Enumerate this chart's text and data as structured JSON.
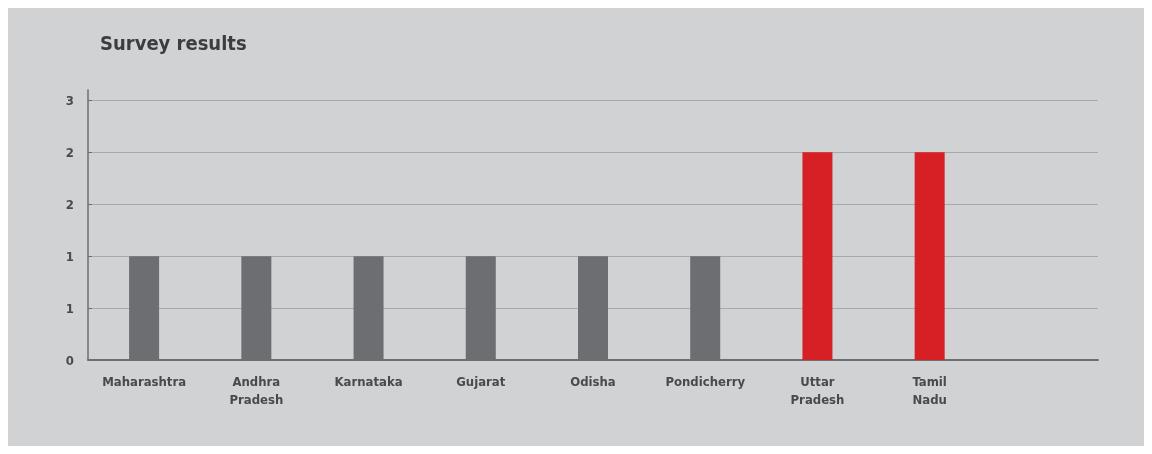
{
  "chart_data": {
    "type": "bar",
    "title": "Survey results",
    "categories": [
      "Maharashtra",
      "Andhra Pradesh",
      "Karnataka",
      "Gujarat",
      "Odisha",
      "Pondicherry",
      "Uttar Pradesh",
      "Tamil Nadu",
      null
    ],
    "values": [
      1,
      1,
      1,
      1,
      1,
      1,
      2,
      2,
      null
    ],
    "colors": [
      "#6d6e71",
      "#6d6e71",
      "#6d6e71",
      "#6d6e71",
      "#6d6e71",
      "#6d6e71",
      "#d71f26",
      "#d71f26",
      "#6d6e71"
    ],
    "ylim": [
      0,
      2.6
    ],
    "yticks": [
      {
        "value": 0,
        "label": "0"
      },
      {
        "value": 0.5,
        "label": "1"
      },
      {
        "value": 1,
        "label": "1"
      },
      {
        "value": 1.5,
        "label": "2"
      },
      {
        "value": 2,
        "label": "2"
      },
      {
        "value": 2.5,
        "label": "3"
      }
    ],
    "grid": "y"
  }
}
